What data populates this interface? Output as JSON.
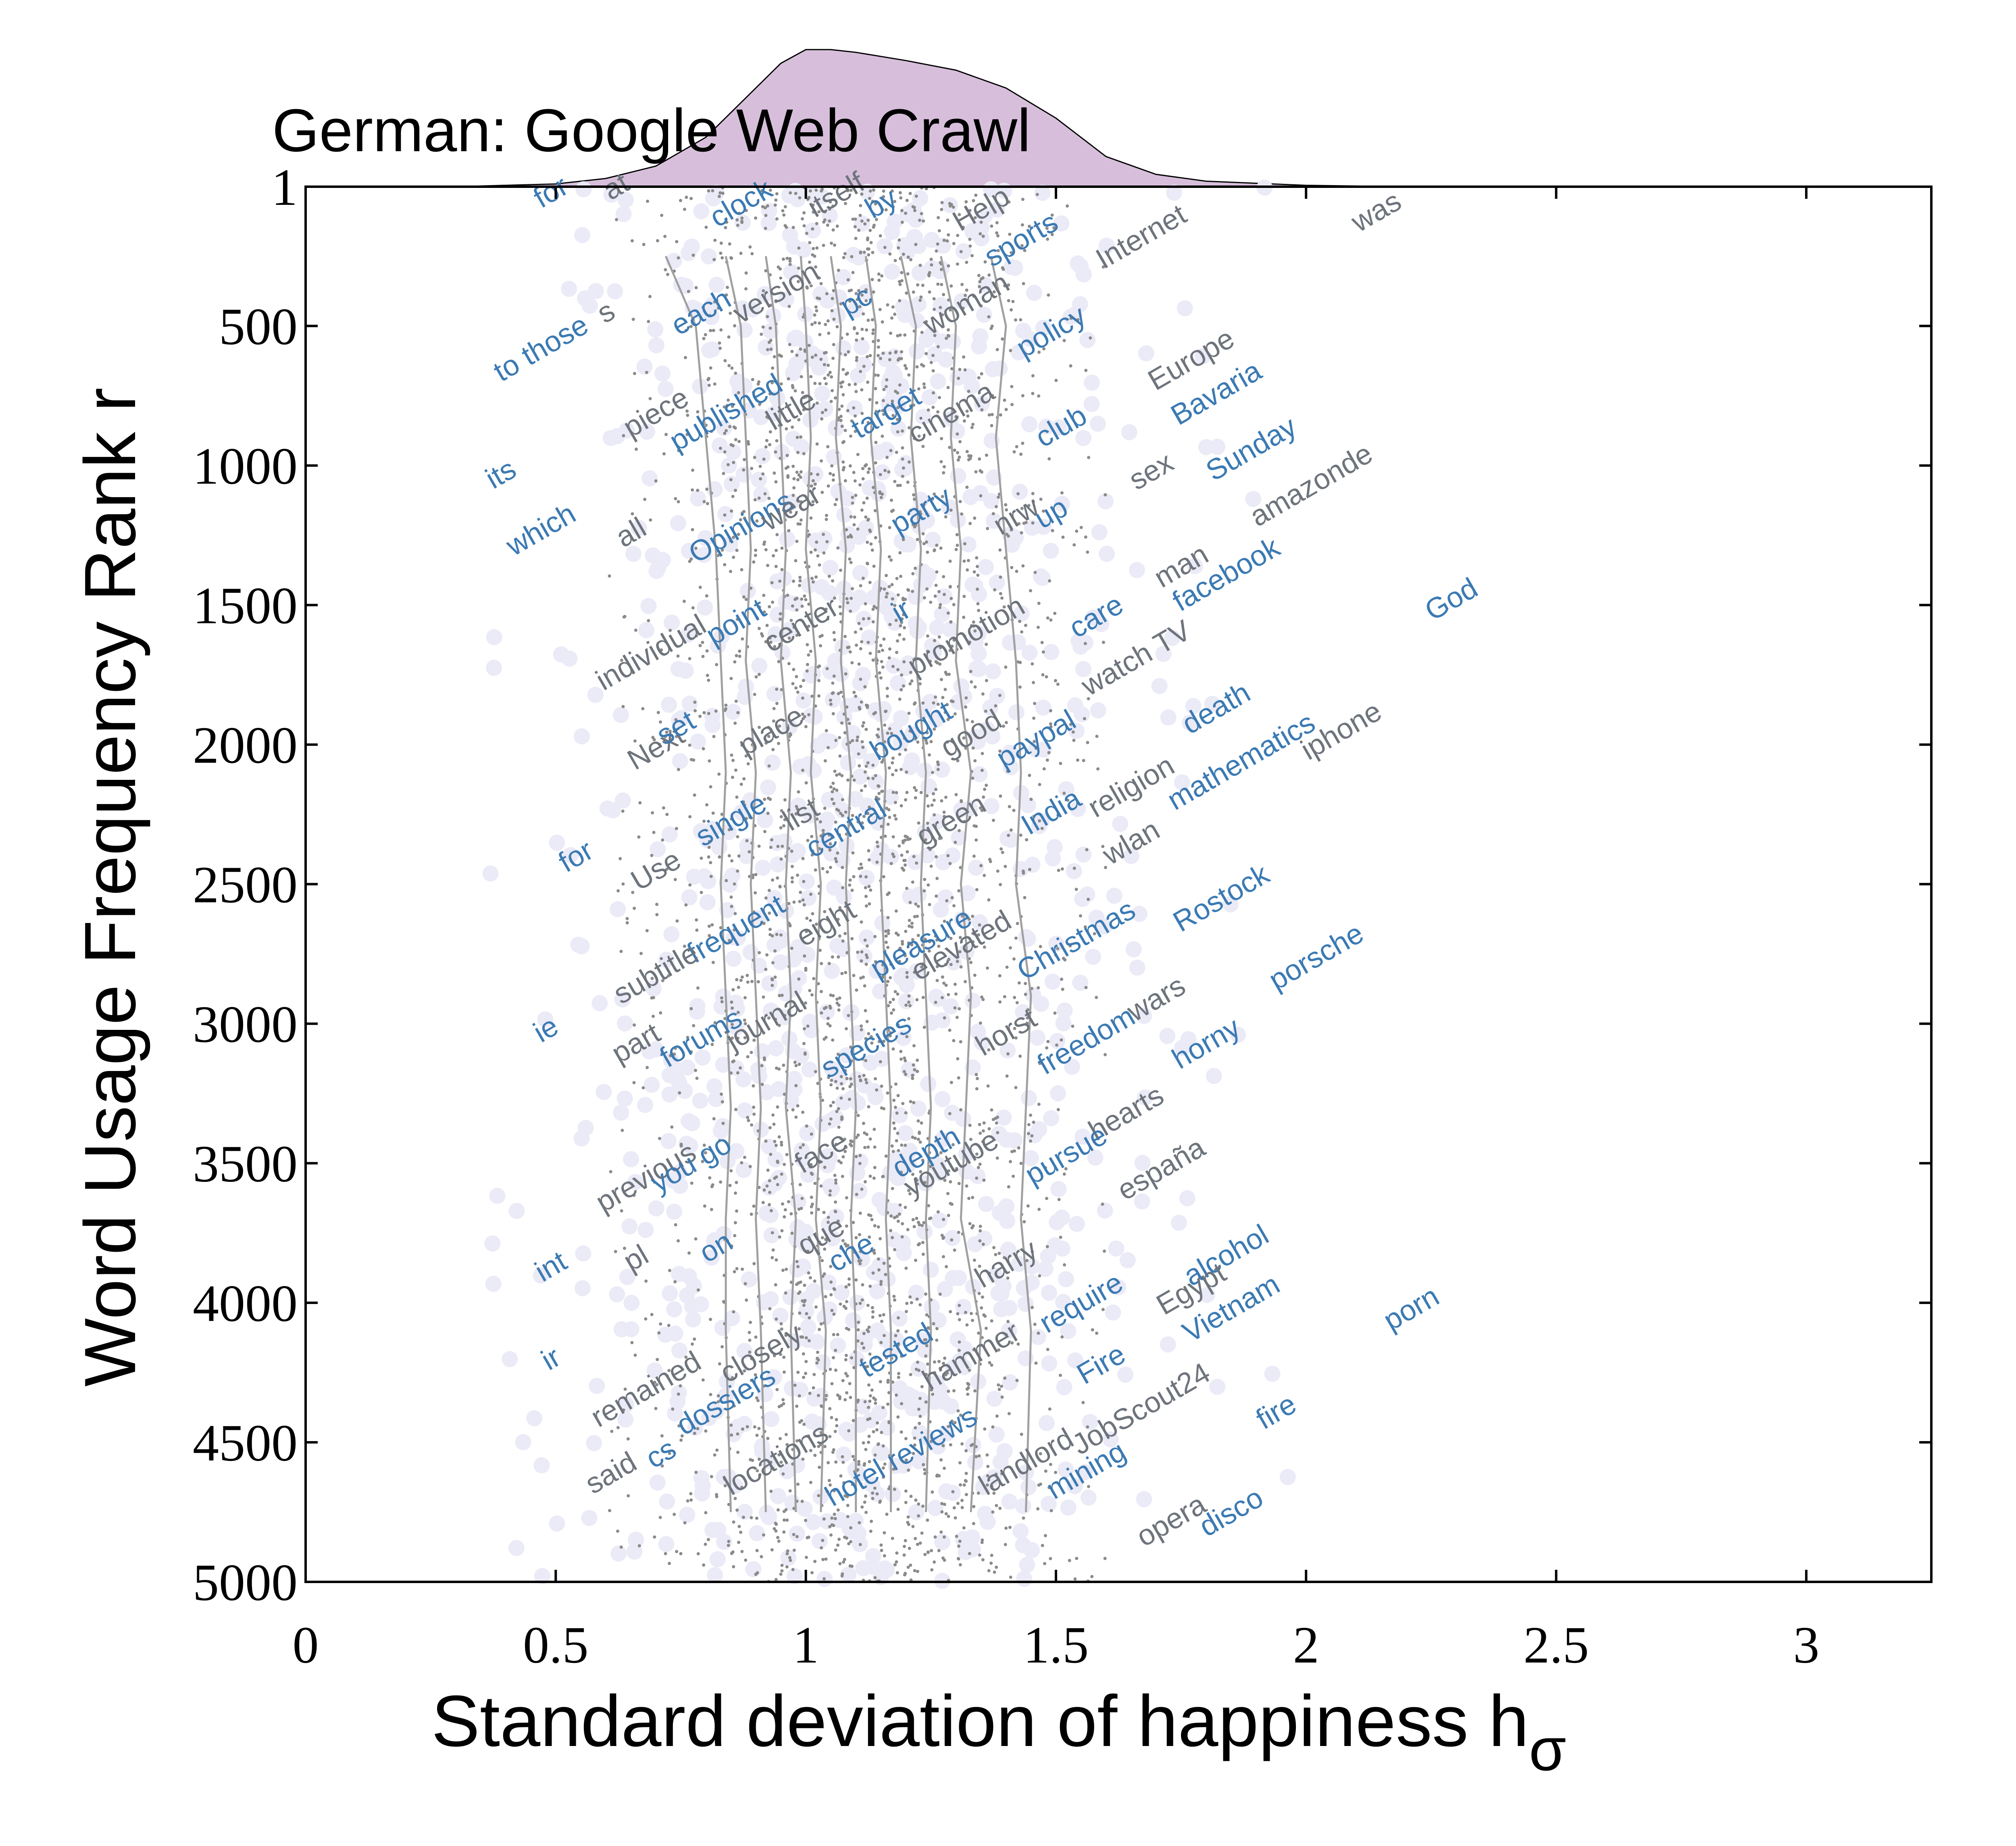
{
  "chart_data": {
    "type": "scatter",
    "title": "German: Google Web Crawl",
    "xlabel": "Standard deviation of happiness h",
    "xlabel_subscript": "σ",
    "ylabel": "Word Usage Frequency Rank r",
    "xlim": [
      0,
      3.25
    ],
    "ylim": [
      5000,
      1
    ],
    "y_inverted": true,
    "x_ticks": [
      {
        "value": 0,
        "label": "0"
      },
      {
        "value": 0.5,
        "label": "0.5"
      },
      {
        "value": 1,
        "label": "1"
      },
      {
        "value": 1.5,
        "label": "1.5"
      },
      {
        "value": 2,
        "label": "2"
      },
      {
        "value": 2.5,
        "label": "2.5"
      },
      {
        "value": 3,
        "label": "3"
      }
    ],
    "y_ticks": [
      {
        "value": 1,
        "label": "1"
      },
      {
        "value": 500,
        "label": "500"
      },
      {
        "value": 1000,
        "label": "1000"
      },
      {
        "value": 1500,
        "label": "1500"
      },
      {
        "value": 2000,
        "label": "2000"
      },
      {
        "value": 2500,
        "label": "2500"
      },
      {
        "value": 3000,
        "label": "3000"
      },
      {
        "value": 3500,
        "label": "3500"
      },
      {
        "value": 4000,
        "label": "4000"
      },
      {
        "value": 4500,
        "label": "4500"
      },
      {
        "value": 5000,
        "label": "5000"
      }
    ],
    "grid": false,
    "colors": {
      "density_fill": "#d7bfdb",
      "circle_fill": "#ebeaf7",
      "dots": "#8a8a8a",
      "contours": "#a0a0a0",
      "word_blue": "#3b7ab3",
      "word_gray": "#6e747c"
    },
    "density": {
      "x": [
        0.3,
        0.5,
        0.6,
        0.7,
        0.8,
        0.9,
        0.95,
        1.0,
        1.05,
        1.1,
        1.2,
        1.3,
        1.4,
        1.5,
        1.6,
        1.7,
        1.8,
        2.0,
        2.2
      ],
      "y": [
        0.0,
        0.02,
        0.06,
        0.15,
        0.36,
        0.72,
        0.9,
        1.0,
        1.0,
        0.98,
        0.92,
        0.85,
        0.72,
        0.5,
        0.22,
        0.09,
        0.04,
        0.01,
        0.0
      ]
    },
    "contours": [
      {
        "x": [
          0.72,
          0.78,
          0.8,
          0.82,
          0.83,
          0.84,
          0.83,
          0.84,
          0.85,
          0.84,
          0.84,
          0.85
        ],
        "y": [
          250,
          500,
          900,
          1300,
          1700,
          2100,
          2500,
          2900,
          3300,
          3700,
          4100,
          4750
        ]
      },
      {
        "x": [
          0.84,
          0.87,
          0.88,
          0.89,
          0.88,
          0.9,
          0.89,
          0.9,
          0.91,
          0.9,
          0.91,
          0.92
        ],
        "y": [
          250,
          500,
          900,
          1300,
          1700,
          2100,
          2500,
          2900,
          3300,
          3700,
          4100,
          4750
        ]
      },
      {
        "x": [
          0.92,
          0.94,
          0.95,
          0.96,
          0.95,
          0.97,
          0.96,
          0.97,
          0.96,
          0.98,
          0.97,
          0.98
        ],
        "y": [
          250,
          500,
          900,
          1300,
          1700,
          2100,
          2500,
          2900,
          3300,
          3700,
          4100,
          4750
        ]
      },
      {
        "x": [
          0.99,
          1.0,
          1.01,
          1.0,
          1.02,
          1.01,
          1.03,
          1.02,
          1.03,
          1.02,
          1.04,
          1.03
        ],
        "y": [
          250,
          500,
          900,
          1300,
          1700,
          2100,
          2500,
          2900,
          3300,
          3700,
          4100,
          4750
        ]
      },
      {
        "x": [
          1.05,
          1.07,
          1.06,
          1.08,
          1.07,
          1.09,
          1.08,
          1.09,
          1.1,
          1.09,
          1.1,
          1.1
        ],
        "y": [
          250,
          500,
          900,
          1300,
          1700,
          2100,
          2500,
          2900,
          3300,
          3700,
          4100,
          4750
        ]
      },
      {
        "x": [
          1.12,
          1.14,
          1.13,
          1.15,
          1.14,
          1.16,
          1.15,
          1.16,
          1.17,
          1.16,
          1.17,
          1.17
        ],
        "y": [
          250,
          500,
          900,
          1300,
          1700,
          2100,
          2500,
          2900,
          3300,
          3700,
          4100,
          4750
        ]
      },
      {
        "x": [
          1.19,
          1.22,
          1.21,
          1.23,
          1.22,
          1.24,
          1.23,
          1.24,
          1.25,
          1.24,
          1.25,
          1.24
        ],
        "y": [
          250,
          500,
          900,
          1300,
          1700,
          2100,
          2500,
          2900,
          3300,
          3700,
          4100,
          4750
        ]
      },
      {
        "x": [
          1.27,
          1.3,
          1.29,
          1.31,
          1.3,
          1.33,
          1.31,
          1.33,
          1.32,
          1.31,
          1.35,
          1.33
        ],
        "y": [
          250,
          500,
          900,
          1300,
          1700,
          2100,
          2500,
          2900,
          3300,
          3700,
          4100,
          4750
        ]
      },
      {
        "x": [
          1.37,
          1.4,
          1.38,
          1.4,
          1.42,
          1.43,
          1.42,
          1.45,
          1.44,
          1.43,
          1.45,
          1.44
        ],
        "y": [
          250,
          500,
          900,
          1300,
          1700,
          2100,
          2500,
          2900,
          3300,
          3700,
          4100,
          4750
        ]
      }
    ],
    "points_summary": {
      "count": 5000,
      "x_center": 1.1,
      "x_spread_sd": 0.22
    },
    "words": [
      {
        "text": "for",
        "x": 0.5,
        "y": 50,
        "color": "blue"
      },
      {
        "text": "at",
        "x": 0.63,
        "y": 30,
        "color": "gray"
      },
      {
        "text": "clock",
        "x": 0.88,
        "y": 90,
        "color": "blue"
      },
      {
        "text": "itself",
        "x": 1.07,
        "y": 60,
        "color": "gray"
      },
      {
        "text": "by",
        "x": 1.16,
        "y": 90,
        "color": "blue"
      },
      {
        "text": "Help",
        "x": 1.36,
        "y": 110,
        "color": "gray"
      },
      {
        "text": "sports",
        "x": 1.44,
        "y": 220,
        "color": "blue"
      },
      {
        "text": "Internet",
        "x": 1.68,
        "y": 210,
        "color": "gray"
      },
      {
        "text": "was",
        "x": 2.15,
        "y": 120,
        "color": "gray"
      },
      {
        "text": "to those",
        "x": 0.48,
        "y": 610,
        "color": "blue"
      },
      {
        "text": "s",
        "x": 0.61,
        "y": 480,
        "color": "gray"
      },
      {
        "text": "each",
        "x": 0.8,
        "y": 480,
        "color": "blue"
      },
      {
        "text": "version",
        "x": 0.95,
        "y": 410,
        "color": "gray"
      },
      {
        "text": "pc",
        "x": 1.11,
        "y": 440,
        "color": "blue"
      },
      {
        "text": "woman",
        "x": 1.33,
        "y": 450,
        "color": "gray"
      },
      {
        "text": "policy",
        "x": 1.5,
        "y": 550,
        "color": "blue"
      },
      {
        "text": "Europe",
        "x": 1.78,
        "y": 650,
        "color": "gray"
      },
      {
        "text": "Bavaria",
        "x": 1.83,
        "y": 770,
        "color": "blue"
      },
      {
        "text": "piece",
        "x": 0.71,
        "y": 840,
        "color": "gray"
      },
      {
        "text": "published",
        "x": 0.85,
        "y": 840,
        "color": "blue"
      },
      {
        "text": "little",
        "x": 0.98,
        "y": 830,
        "color": "gray"
      },
      {
        "text": "target",
        "x": 1.17,
        "y": 840,
        "color": "blue"
      },
      {
        "text": "cinema",
        "x": 1.3,
        "y": 840,
        "color": "gray"
      },
      {
        "text": "club",
        "x": 1.52,
        "y": 890,
        "color": "blue"
      },
      {
        "text": "Sunday",
        "x": 1.9,
        "y": 970,
        "color": "blue"
      },
      {
        "text": "its",
        "x": 0.4,
        "y": 1060,
        "color": "blue"
      },
      {
        "text": "sex",
        "x": 1.7,
        "y": 1050,
        "color": "gray"
      },
      {
        "text": "amazonde",
        "x": 2.02,
        "y": 1100,
        "color": "gray"
      },
      {
        "text": "which",
        "x": 0.48,
        "y": 1260,
        "color": "blue"
      },
      {
        "text": "all",
        "x": 0.66,
        "y": 1270,
        "color": "gray"
      },
      {
        "text": "Opinions",
        "x": 0.88,
        "y": 1250,
        "color": "blue"
      },
      {
        "text": "wear",
        "x": 0.98,
        "y": 1180,
        "color": "gray"
      },
      {
        "text": "party",
        "x": 1.24,
        "y": 1190,
        "color": "blue"
      },
      {
        "text": "nrw",
        "x": 1.43,
        "y": 1210,
        "color": "gray"
      },
      {
        "text": "up",
        "x": 1.5,
        "y": 1200,
        "color": "blue"
      },
      {
        "text": "man",
        "x": 1.76,
        "y": 1390,
        "color": "gray"
      },
      {
        "text": "facebook",
        "x": 1.85,
        "y": 1420,
        "color": "blue"
      },
      {
        "text": "God",
        "x": 2.3,
        "y": 1510,
        "color": "blue"
      },
      {
        "text": "individual",
        "x": 0.7,
        "y": 1700,
        "color": "gray"
      },
      {
        "text": "point",
        "x": 0.87,
        "y": 1590,
        "color": "blue"
      },
      {
        "text": "center",
        "x": 1.0,
        "y": 1600,
        "color": "gray"
      },
      {
        "text": "ir",
        "x": 1.2,
        "y": 1550,
        "color": "blue"
      },
      {
        "text": "promotion",
        "x": 1.33,
        "y": 1640,
        "color": "gray"
      },
      {
        "text": "care",
        "x": 1.59,
        "y": 1570,
        "color": "blue"
      },
      {
        "text": "watch TV",
        "x": 1.67,
        "y": 1720,
        "color": "gray"
      },
      {
        "text": "Next",
        "x": 0.71,
        "y": 2040,
        "color": "gray"
      },
      {
        "text": "set",
        "x": 0.75,
        "y": 1970,
        "color": "blue"
      },
      {
        "text": "place",
        "x": 0.94,
        "y": 1980,
        "color": "gray"
      },
      {
        "text": "bought",
        "x": 1.22,
        "y": 1980,
        "color": "blue"
      },
      {
        "text": "good",
        "x": 1.34,
        "y": 1990,
        "color": "gray"
      },
      {
        "text": "paypal",
        "x": 1.47,
        "y": 2010,
        "color": "blue"
      },
      {
        "text": "death",
        "x": 1.83,
        "y": 1900,
        "color": "blue"
      },
      {
        "text": "iphone",
        "x": 2.08,
        "y": 1980,
        "color": "gray"
      },
      {
        "text": "mathematics",
        "x": 1.88,
        "y": 2090,
        "color": "blue"
      },
      {
        "text": "religion",
        "x": 1.66,
        "y": 2180,
        "color": "gray"
      },
      {
        "text": "India",
        "x": 1.5,
        "y": 2270,
        "color": "blue"
      },
      {
        "text": "single",
        "x": 0.86,
        "y": 2300,
        "color": "blue"
      },
      {
        "text": "list",
        "x": 1.0,
        "y": 2280,
        "color": "gray"
      },
      {
        "text": "central",
        "x": 1.09,
        "y": 2330,
        "color": "blue"
      },
      {
        "text": "green",
        "x": 1.3,
        "y": 2300,
        "color": "gray"
      },
      {
        "text": "wlan",
        "x": 1.66,
        "y": 2380,
        "color": "gray"
      },
      {
        "text": "for",
        "x": 0.55,
        "y": 2430,
        "color": "blue"
      },
      {
        "text": "Use",
        "x": 0.71,
        "y": 2480,
        "color": "gray"
      },
      {
        "text": "Rostock",
        "x": 1.84,
        "y": 2580,
        "color": "blue"
      },
      {
        "text": "frequent",
        "x": 0.87,
        "y": 2690,
        "color": "blue"
      },
      {
        "text": "eight",
        "x": 1.05,
        "y": 2670,
        "color": "gray"
      },
      {
        "text": "pleasure",
        "x": 1.24,
        "y": 2740,
        "color": "blue"
      },
      {
        "text": "elevated",
        "x": 1.32,
        "y": 2750,
        "color": "gray"
      },
      {
        "text": "Christmas",
        "x": 1.55,
        "y": 2730,
        "color": "blue"
      },
      {
        "text": "porsche",
        "x": 2.03,
        "y": 2790,
        "color": "blue"
      },
      {
        "text": "subtitle",
        "x": 0.71,
        "y": 2850,
        "color": "gray"
      },
      {
        "text": "ie",
        "x": 0.49,
        "y": 3050,
        "color": "blue"
      },
      {
        "text": "wars",
        "x": 1.71,
        "y": 2940,
        "color": "gray"
      },
      {
        "text": "part",
        "x": 0.67,
        "y": 3100,
        "color": "gray"
      },
      {
        "text": "forums",
        "x": 0.8,
        "y": 3080,
        "color": "blue"
      },
      {
        "text": "journal",
        "x": 0.93,
        "y": 3020,
        "color": "gray"
      },
      {
        "text": "species",
        "x": 1.13,
        "y": 3110,
        "color": "blue"
      },
      {
        "text": "horst",
        "x": 1.41,
        "y": 3060,
        "color": "gray"
      },
      {
        "text": "freedom",
        "x": 1.57,
        "y": 3090,
        "color": "blue"
      },
      {
        "text": "horny",
        "x": 1.81,
        "y": 3100,
        "color": "blue"
      },
      {
        "text": "hearts",
        "x": 1.65,
        "y": 3350,
        "color": "gray"
      },
      {
        "text": "previous",
        "x": 0.69,
        "y": 3580,
        "color": "gray"
      },
      {
        "text": "you go",
        "x": 0.78,
        "y": 3530,
        "color": "blue"
      },
      {
        "text": "face",
        "x": 1.04,
        "y": 3490,
        "color": "gray"
      },
      {
        "text": "depth",
        "x": 1.25,
        "y": 3490,
        "color": "blue"
      },
      {
        "text": "youtube",
        "x": 1.3,
        "y": 3530,
        "color": "gray"
      },
      {
        "text": "pursue",
        "x": 1.53,
        "y": 3500,
        "color": "blue"
      },
      {
        "text": "españa",
        "x": 1.72,
        "y": 3550,
        "color": "gray"
      },
      {
        "text": "int",
        "x": 0.5,
        "y": 3900,
        "color": "blue"
      },
      {
        "text": "pl",
        "x": 0.67,
        "y": 3870,
        "color": "gray"
      },
      {
        "text": "on",
        "x": 0.83,
        "y": 3830,
        "color": "blue"
      },
      {
        "text": "que",
        "x": 1.04,
        "y": 3790,
        "color": "gray"
      },
      {
        "text": "che",
        "x": 1.1,
        "y": 3850,
        "color": "blue"
      },
      {
        "text": "harry",
        "x": 1.41,
        "y": 3890,
        "color": "gray"
      },
      {
        "text": "require",
        "x": 1.56,
        "y": 4030,
        "color": "blue"
      },
      {
        "text": "alcohol",
        "x": 1.85,
        "y": 3860,
        "color": "blue"
      },
      {
        "text": "Egypt",
        "x": 1.78,
        "y": 3980,
        "color": "gray"
      },
      {
        "text": "Vietnam",
        "x": 1.86,
        "y": 4050,
        "color": "blue"
      },
      {
        "text": "porn",
        "x": 2.22,
        "y": 4050,
        "color": "blue"
      },
      {
        "text": "ir",
        "x": 0.5,
        "y": 4230,
        "color": "blue"
      },
      {
        "text": "remained",
        "x": 0.69,
        "y": 4340,
        "color": "gray"
      },
      {
        "text": "closely",
        "x": 0.92,
        "y": 4210,
        "color": "gray"
      },
      {
        "text": "tested",
        "x": 1.19,
        "y": 4200,
        "color": "blue"
      },
      {
        "text": "hammer",
        "x": 1.34,
        "y": 4220,
        "color": "gray"
      },
      {
        "text": "Fire",
        "x": 1.6,
        "y": 4250,
        "color": "blue"
      },
      {
        "text": "dossiers",
        "x": 0.85,
        "y": 4380,
        "color": "blue"
      },
      {
        "text": "JobScout24",
        "x": 1.68,
        "y": 4410,
        "color": "gray"
      },
      {
        "text": "said",
        "x": 0.62,
        "y": 4640,
        "color": "gray"
      },
      {
        "text": "cs",
        "x": 0.72,
        "y": 4570,
        "color": "blue"
      },
      {
        "text": "locations",
        "x": 0.95,
        "y": 4590,
        "color": "gray"
      },
      {
        "text": "hotel reviews",
        "x": 1.2,
        "y": 4580,
        "color": "blue"
      },
      {
        "text": "landlord",
        "x": 1.45,
        "y": 4600,
        "color": "gray"
      },
      {
        "text": "mining",
        "x": 1.57,
        "y": 4630,
        "color": "blue"
      },
      {
        "text": "fire",
        "x": 1.95,
        "y": 4420,
        "color": "blue"
      },
      {
        "text": "opera",
        "x": 1.74,
        "y": 4810,
        "color": "gray"
      },
      {
        "text": "disco",
        "x": 1.86,
        "y": 4780,
        "color": "blue"
      }
    ]
  }
}
